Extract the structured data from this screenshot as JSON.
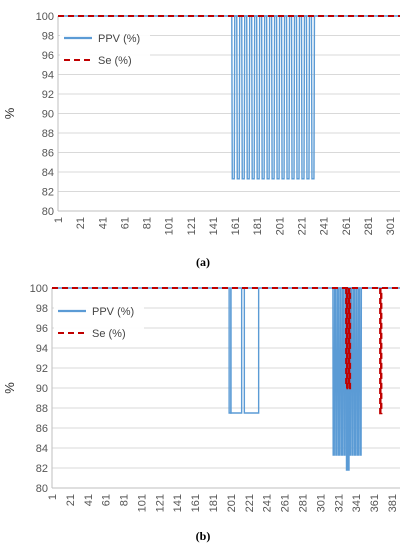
{
  "colors": {
    "ppv": "#5b9bd5",
    "se": "#c00000",
    "grid": "#d9d9d9",
    "axis": "#bfbfbf"
  },
  "chart_data": [
    {
      "id": "a",
      "type": "line",
      "caption": "(a)",
      "title": "",
      "xlabel": "",
      "ylabel": "%",
      "ylim": [
        80,
        100
      ],
      "yticks": [
        80,
        82,
        84,
        86,
        88,
        90,
        92,
        94,
        96,
        98,
        100
      ],
      "xlim": [
        1,
        310
      ],
      "xticks": [
        "1",
        "21",
        "41",
        "61",
        "81",
        "101",
        "121",
        "141",
        "161",
        "181",
        "201",
        "221",
        "241",
        "261",
        "281",
        "301"
      ],
      "grid": true,
      "legend": {
        "placement": "top-left",
        "entries": [
          "PPV (%)",
          "Se (%)"
        ]
      },
      "series": [
        {
          "name": "PPV (%)",
          "style": "solid",
          "baseline": 100,
          "dips": [
            {
              "start": 158,
              "end": 230,
              "period": 4.5,
              "value": 83.3
            }
          ]
        },
        {
          "name": "Se (%)",
          "style": "dashed",
          "baseline": 100,
          "dips": []
        }
      ]
    },
    {
      "id": "b",
      "type": "line",
      "caption": "(b)",
      "title": "",
      "xlabel": "",
      "ylabel": "%",
      "ylim": [
        80,
        100
      ],
      "yticks": [
        80,
        82,
        84,
        86,
        88,
        90,
        92,
        94,
        96,
        98,
        100
      ],
      "xlim": [
        1,
        390
      ],
      "xticks": [
        "1",
        "21",
        "41",
        "61",
        "81",
        "101",
        "121",
        "141",
        "161",
        "181",
        "201",
        "221",
        "241",
        "261",
        "281",
        "301",
        "321",
        "341",
        "361",
        "381"
      ],
      "grid": true,
      "legend": {
        "placement": "top-left",
        "entries": [
          "PPV (%)",
          "Se (%)"
        ]
      },
      "series": [
        {
          "name": "PPV (%)",
          "style": "solid",
          "baseline": 100,
          "segments": [
            {
              "from": 199,
              "to": 201,
              "value": 87.5
            },
            {
              "from": 201,
              "to": 213,
              "value": 87.5
            },
            {
              "from": 216,
              "to": 232,
              "value": 87.5
            }
          ],
          "dips": [
            {
              "start": 315,
              "end": 346,
              "period": 3,
              "value": 83.3
            },
            {
              "start": 330,
              "end": 332,
              "period": 2,
              "value": 81.8
            }
          ]
        },
        {
          "name": "Se (%)",
          "style": "dashed",
          "baseline": 100,
          "segments": [
            {
              "from": 330,
              "to": 331,
              "value": 90
            },
            {
              "from": 333,
              "to": 334,
              "value": 90
            },
            {
              "from": 368,
              "to": 369,
              "value": 87.5
            }
          ],
          "dips": []
        }
      ]
    }
  ]
}
